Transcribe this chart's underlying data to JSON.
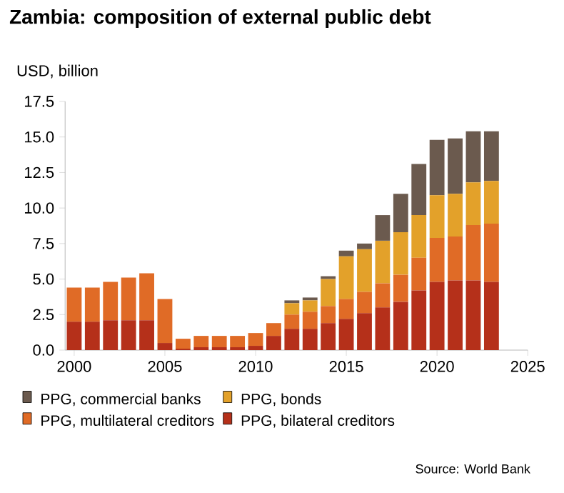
{
  "chart_data": {
    "type": "bar",
    "title": "Zambia: composition of external public debt",
    "ylabel": "USD, billion",
    "annotations": [
      "Source: World Bank"
    ],
    "stacked": true,
    "legend": "bottom",
    "x": [
      2000,
      2001,
      2002,
      2003,
      2004,
      2005,
      2006,
      2007,
      2008,
      2009,
      2010,
      2011,
      2012,
      2013,
      2014,
      2015,
      2016,
      2017,
      2018,
      2019,
      2020,
      2021,
      2022,
      2023
    ],
    "series": [
      {
        "name": "PPG, bilateral creditors",
        "color": "#b5301a",
        "values": [
          2.0,
          2.0,
          2.1,
          2.1,
          2.1,
          0.5,
          0.1,
          0.2,
          0.2,
          0.2,
          0.3,
          1.0,
          1.5,
          1.5,
          1.9,
          2.2,
          2.6,
          3.0,
          3.4,
          4.2,
          4.8,
          4.9,
          4.9,
          4.8
        ]
      },
      {
        "name": "PPG, multilateral creditors",
        "color": "#e06b26",
        "values": [
          2.4,
          2.4,
          2.7,
          3.0,
          3.3,
          3.1,
          0.7,
          0.8,
          0.8,
          0.8,
          0.9,
          0.9,
          1.0,
          1.2,
          1.2,
          1.4,
          1.5,
          1.7,
          1.9,
          2.3,
          3.1,
          3.1,
          3.9,
          4.1
        ]
      },
      {
        "name": "PPG, bonds",
        "color": "#e3a12a",
        "values": [
          0,
          0,
          0,
          0,
          0,
          0,
          0,
          0,
          0,
          0,
          0,
          0,
          0.8,
          0.8,
          1.9,
          3.0,
          3.0,
          3.0,
          3.0,
          3.0,
          3.0,
          3.0,
          3.0,
          3.0
        ]
      },
      {
        "name": "PPG, commercial banks",
        "color": "#6b5a4e",
        "values": [
          0,
          0,
          0,
          0,
          0,
          0,
          0,
          0,
          0,
          0,
          0,
          0,
          0.2,
          0.2,
          0.2,
          0.4,
          0.4,
          1.8,
          2.7,
          3.6,
          3.9,
          3.9,
          3.6,
          3.5
        ]
      }
    ],
    "xlim": [
      1999.5,
      2025
    ],
    "xticks": [
      2000,
      2005,
      2010,
      2015,
      2020,
      2025
    ],
    "ylim": [
      0,
      17.5
    ],
    "yticks": [
      {
        "value": 0,
        "label": "0.0"
      },
      {
        "value": 2.5,
        "label": "2.5"
      },
      {
        "value": 5,
        "label": "5.0"
      },
      {
        "value": 7.5,
        "label": "7.5"
      },
      {
        "value": 10,
        "label": "10.0"
      },
      {
        "value": 12.5,
        "label": "12.5"
      },
      {
        "value": 15,
        "label": "15.0"
      },
      {
        "value": 17.5,
        "label": "17.5"
      }
    ]
  }
}
